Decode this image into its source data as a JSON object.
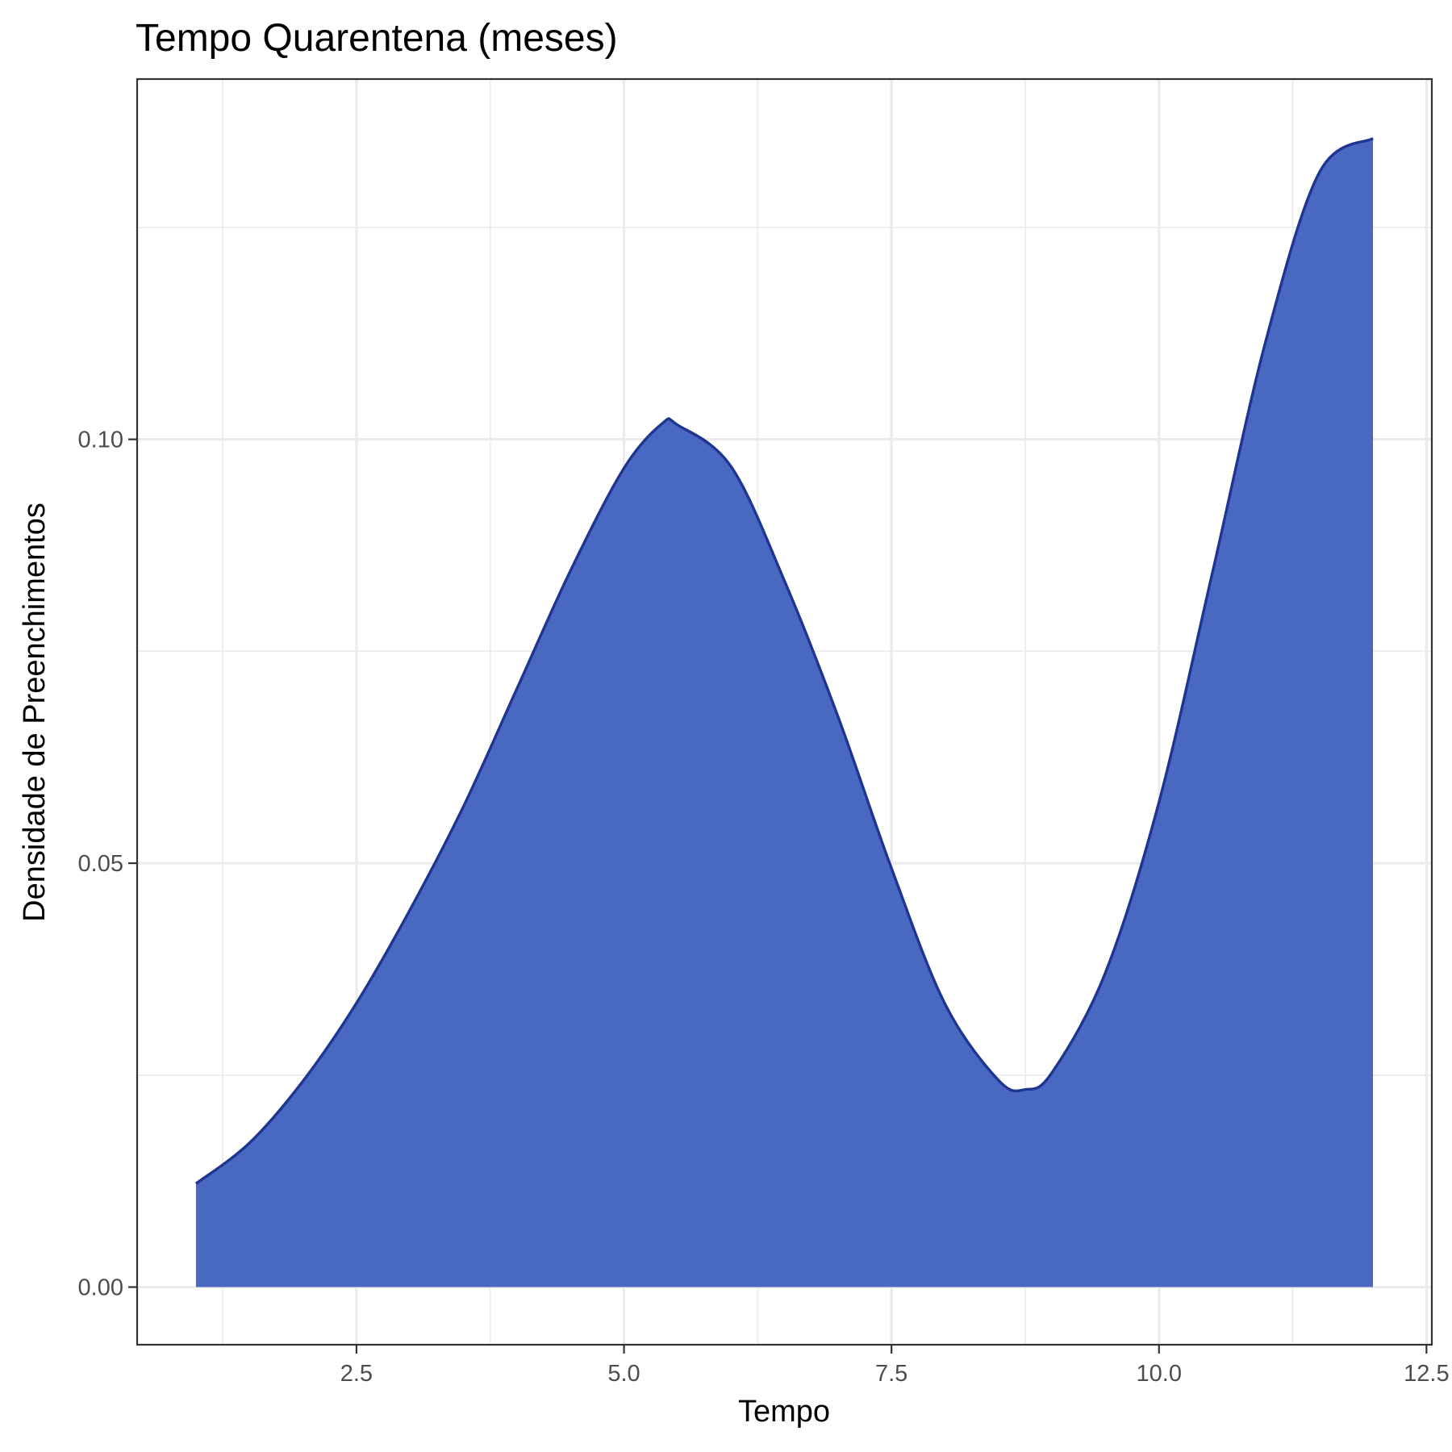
{
  "chart_data": {
    "type": "area",
    "title": "Tempo Quarentena (meses)",
    "xlabel": "Tempo",
    "ylabel": "Densidade de Preenchimentos",
    "xlim": [
      0.45,
      12.55
    ],
    "ylim": [
      -0.0068,
      0.1425
    ],
    "x_ticks": [
      2.5,
      5.0,
      7.5,
      10.0,
      12.5
    ],
    "x_tick_labels": [
      "2.5",
      "5.0",
      "7.5",
      "10.0",
      "12.5"
    ],
    "y_ticks": [
      0.0,
      0.05,
      0.1
    ],
    "y_tick_labels": [
      "0.00",
      "0.05",
      "0.10"
    ],
    "x_minor_ticks": [
      1.25,
      3.75,
      6.25,
      8.75,
      11.25
    ],
    "y_minor_ticks": [
      0.025,
      0.075,
      0.125
    ],
    "grid": true,
    "legend": "none",
    "fill_color": "#3a5bbd",
    "fill_opacity": 0.92,
    "line_color": "#1f3590",
    "series": [
      {
        "x": [
          1.0,
          1.5,
          2.0,
          2.5,
          3.0,
          3.5,
          4.0,
          4.5,
          5.0,
          5.36,
          5.5,
          6.0,
          6.5,
          7.0,
          7.5,
          8.0,
          8.5,
          8.75,
          9.0,
          9.5,
          10.0,
          10.5,
          11.0,
          11.5,
          12.0
        ],
        "y": [
          0.0122,
          0.017,
          0.0243,
          0.0335,
          0.0445,
          0.0567,
          0.0706,
          0.0845,
          0.0966,
          0.1019,
          0.1017,
          0.0968,
          0.0833,
          0.0673,
          0.0494,
          0.0334,
          0.0244,
          0.0233,
          0.0253,
          0.0371,
          0.0572,
          0.0843,
          0.1117,
          0.1315,
          0.1355
        ]
      }
    ]
  }
}
